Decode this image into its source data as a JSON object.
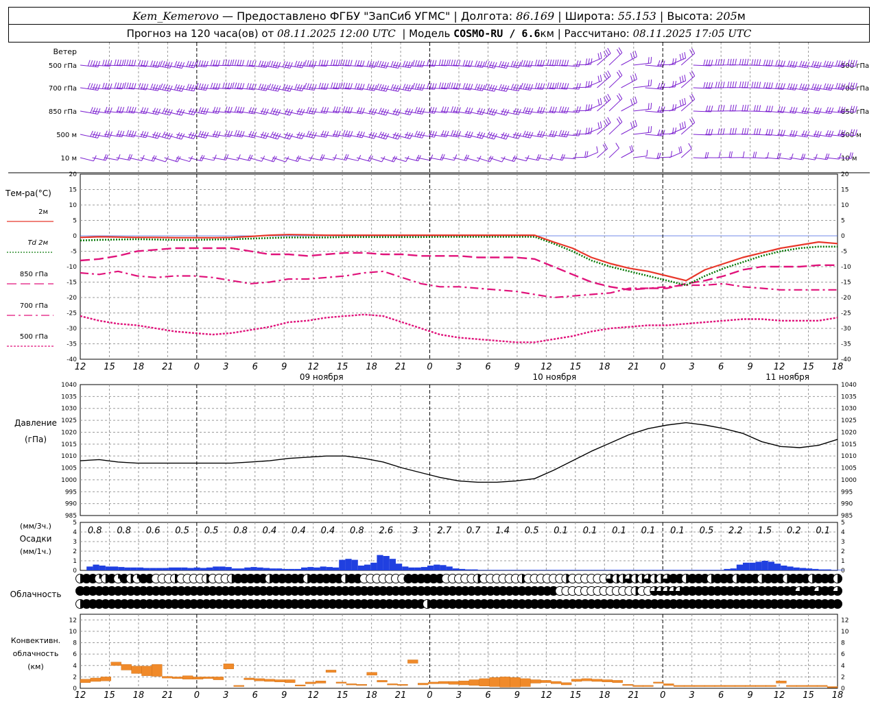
{
  "header": {
    "station": "Kem_Kemerovo",
    "provider": "— Предоставлено ФГБУ \"ЗапСиб УГМС\" |",
    "lon_label": "Долгота:",
    "lon": "86.169",
    "lat_label": "| Широта:",
    "lat": "55.153",
    "alt_label": "| Высота:",
    "alt": "205",
    "alt_unit": "м",
    "forecast_label": "Прогноз на 120 часа(ов) от",
    "forecast_start": "08.11.2025 12:00 UTC",
    "model_label": "| Модель",
    "model": "COSMO-RU / 6.6",
    "model_unit": "км",
    "calc_label": "| Рассчитано:",
    "calc_time": "08.11.2025 17:05 UTC"
  },
  "colors": {
    "t2m": "#e8372a",
    "td2m": "#0a7a0a",
    "t_upper": "#e0127a",
    "wind": "#7b1fd0",
    "precip3h": "#2040e0",
    "precip1h": "#2a8a2a",
    "convective": "#f08a2a",
    "grid": "#999999",
    "zero_line": "#4060e0"
  },
  "time_axis": {
    "hours": [
      "12",
      "15",
      "18",
      "21",
      "0",
      "3",
      "6",
      "9",
      "12",
      "15",
      "18",
      "21",
      "0",
      "3",
      "6",
      "9",
      "12",
      "15",
      "18",
      "21",
      "0",
      "3",
      "6",
      "9",
      "12",
      "15",
      "18"
    ],
    "dates": [
      {
        "label": "09 ноября",
        "index": 8
      },
      {
        "label": "10 ноября",
        "index": 16
      },
      {
        "label": "11 ноября",
        "index": 24
      }
    ],
    "day_boundaries": [
      4,
      12,
      20
    ]
  },
  "wind_panel": {
    "title": "Ветер",
    "levels": [
      "500 гПа",
      "700 гПа",
      "850 гПа",
      "500 м",
      "10  м"
    ]
  },
  "temp_panel": {
    "title": "Тем-ра(°C)",
    "legend": [
      {
        "label": "2м",
        "style": "solid",
        "color": "t2m"
      },
      {
        "label": "Td  2м",
        "style": "dotted",
        "color": "td2m"
      },
      {
        "label": "850 гПа",
        "style": "solid-thin",
        "color": "t_upper"
      },
      {
        "label": "700 гПа",
        "style": "dashdot",
        "color": "t_upper"
      },
      {
        "label": "500 гПа",
        "style": "dash",
        "color": "t_upper"
      }
    ],
    "ticks": [
      "20",
      "15",
      "10",
      "5",
      "0",
      "-5",
      "-10",
      "-15",
      "-20",
      "-25",
      "-30",
      "-35",
      "-40"
    ]
  },
  "pressure_panel": {
    "title": "Давление",
    "unit": "(гПа)",
    "ticks": [
      "1040",
      "1035",
      "1030",
      "1025",
      "1020",
      "1015",
      "1010",
      "1005",
      "1000",
      "995",
      "990",
      "985"
    ]
  },
  "precip_panel": {
    "label_3h": "(мм/3ч.)",
    "title": "Осадки",
    "label_1h": "(мм/1ч.)",
    "ticks": [
      "5",
      "4",
      "3",
      "2",
      "1",
      "0"
    ],
    "sums_3h": [
      "0.8",
      "0.8",
      "0.6",
      "0.5",
      "0.5",
      "0.8",
      "0.4",
      "0.4",
      "0.4",
      "0.8",
      "2.6",
      "3",
      "2.7",
      "0.7",
      "1.4",
      "0.5",
      "0.1",
      "0.1",
      "0.1",
      "0.1",
      "0.1",
      "0.5",
      "2.2",
      "1.5",
      "0.2",
      "0.1"
    ]
  },
  "cloud_panel": {
    "title": "Облачность"
  },
  "conv_panel": {
    "title_lines": [
      "Конвективн.",
      "облачность",
      "(км)"
    ],
    "ticks": [
      "12",
      "10",
      "8",
      "6",
      "4",
      "2",
      "0"
    ]
  },
  "chart_data": [
    {
      "type": "line",
      "title": "Тем-ра(°C)",
      "x_unit": "hours from 08.11.2025 12:00 UTC",
      "x": [
        0,
        3,
        6,
        9,
        12,
        15,
        18,
        21,
        24,
        27,
        30,
        33,
        36,
        39,
        42,
        45,
        48,
        51,
        54,
        57,
        60,
        63,
        66,
        69,
        72,
        75,
        78,
        81,
        84,
        87,
        90,
        93,
        96,
        99,
        102,
        105,
        108,
        111,
        114,
        117,
        120
      ],
      "ylim": [
        -40,
        20
      ],
      "series": [
        {
          "name": "2м",
          "values": [
            -0.5,
            -0.3,
            -0.4,
            -0.5,
            -0.5,
            -0.6,
            -0.6,
            -0.6,
            -0.5,
            -0.2,
            0.2,
            0.4,
            0.3,
            0.2,
            0.2,
            0.2,
            0.2,
            0.2,
            0.2,
            0.2,
            0.2,
            0.2,
            0.2,
            0.2,
            0.2,
            -2,
            -4,
            -7,
            -9,
            -10.5,
            -11.5,
            -13,
            -14.5,
            -11,
            -9,
            -7,
            -5.5,
            -4,
            -3,
            -2,
            -2.5
          ]
        },
        {
          "name": "Td  2м",
          "values": [
            -1.5,
            -1.3,
            -1.2,
            -1.1,
            -1.2,
            -1.3,
            -1.3,
            -1.2,
            -1.1,
            -0.9,
            -0.7,
            -0.5,
            -0.5,
            -0.5,
            -0.4,
            -0.4,
            -0.4,
            -0.4,
            -0.4,
            -0.3,
            -0.3,
            -0.3,
            -0.3,
            -0.3,
            -0.3,
            -2.5,
            -5,
            -8,
            -10,
            -11.5,
            -13,
            -14.5,
            -16,
            -13,
            -10.5,
            -8.5,
            -6.5,
            -5,
            -4,
            -3.5,
            -3.5
          ]
        },
        {
          "name": "850 гПа",
          "values": [
            -8,
            -7.5,
            -6.5,
            -5,
            -4.5,
            -4,
            -4,
            -4,
            -4,
            -5,
            -6,
            -6,
            -6.5,
            -6,
            -5.5,
            -5.5,
            -6,
            -6,
            -6.5,
            -6.5,
            -6.5,
            -7,
            -7,
            -7,
            -7.5,
            -10,
            -12.5,
            -15,
            -16.5,
            -17.5,
            -17,
            -17,
            -15.5,
            -14.5,
            -13,
            -11,
            -10,
            -10,
            -10,
            -9.5,
            -9.5
          ]
        },
        {
          "name": "700 гПа",
          "values": [
            -12,
            -12.5,
            -11.5,
            -13,
            -13.5,
            -13,
            -13,
            -13.5,
            -14.5,
            -15.5,
            -15,
            -14,
            -14,
            -13.5,
            -13,
            -12,
            -11.5,
            -13.5,
            -15.5,
            -16.5,
            -16.5,
            -17,
            -17.5,
            -18,
            -19,
            -20,
            -19.5,
            -19,
            -18.5,
            -17,
            -17,
            -16.5,
            -16,
            -16,
            -15.5,
            -16.5,
            -17,
            -17.5,
            -17.5,
            -17.5,
            -17.5
          ]
        },
        {
          "name": "500 гПа",
          "values": [
            -26,
            -27.5,
            -28.5,
            -29,
            -30,
            -31,
            -31.5,
            -32,
            -31.5,
            -30.5,
            -29.5,
            -28,
            -27.5,
            -26.5,
            -26,
            -25.5,
            -26,
            -28,
            -30,
            -32,
            -33,
            -33.5,
            -34,
            -34.5,
            -34.5,
            -33.5,
            -32.5,
            -31,
            -30,
            -29.5,
            -29,
            -29,
            -28.5,
            -28,
            -27.5,
            -27,
            -27,
            -27.5,
            -27.5,
            -27.5,
            -26.5
          ]
        }
      ]
    },
    {
      "type": "line",
      "title": "Давление",
      "ylabel": "(гПа)",
      "x_unit": "hours from 08.11.2025 12:00 UTC",
      "x": [
        0,
        3,
        6,
        9,
        12,
        15,
        18,
        21,
        24,
        27,
        30,
        33,
        36,
        39,
        42,
        45,
        48,
        51,
        54,
        57,
        60,
        63,
        66,
        69,
        72,
        75,
        78,
        81,
        84,
        87,
        90,
        93,
        96,
        99,
        102,
        105,
        108,
        111,
        114,
        117,
        120
      ],
      "ylim": [
        985,
        1040
      ],
      "series": [
        {
          "name": "",
          "values": [
            1008,
            1008.5,
            1007.5,
            1007,
            1007,
            1007,
            1007,
            1007,
            1007,
            1007.5,
            1008,
            1009,
            1009.5,
            1010,
            1010,
            1009,
            1007.5,
            1005,
            1003,
            1001,
            999.5,
            999,
            999,
            999.5,
            1000.5,
            1004,
            1008,
            1012,
            1015.5,
            1019,
            1021.5,
            1023,
            1024,
            1023,
            1021.5,
            1019.5,
            1016,
            1014,
            1013.5,
            1014.5,
            1017
          ]
        }
      ]
    },
    {
      "type": "bar",
      "title": "Осадки",
      "ylabel": "(мм/1ч.)",
      "x_unit": "hours from 08.11.2025 12:00 UTC",
      "ylim": [
        0,
        5
      ],
      "hourly_mm": [
        0,
        0.4,
        0.6,
        0.5,
        0.4,
        0.4,
        0.35,
        0.3,
        0.3,
        0.3,
        0.25,
        0.25,
        0.25,
        0.25,
        0.3,
        0.3,
        0.3,
        0.25,
        0.3,
        0.25,
        0.3,
        0.4,
        0.4,
        0.35,
        0.2,
        0.2,
        0.3,
        0.35,
        0.3,
        0.25,
        0.2,
        0.2,
        0.15,
        0.15,
        0.15,
        0.3,
        0.35,
        0.3,
        0.4,
        0.35,
        0.3,
        1.1,
        1.2,
        1.1,
        0.5,
        0.6,
        0.8,
        1.6,
        1.5,
        1.2,
        0.7,
        0.4,
        0.3,
        0.3,
        0.35,
        0.5,
        0.6,
        0.55,
        0.4,
        0.2,
        0.15,
        0.1,
        0.1,
        0.05,
        0.05,
        0.05,
        0.05,
        0.05,
        0.05,
        0.05,
        0.05,
        0.05,
        0.05,
        0.05,
        0.05,
        0.05,
        0.05,
        0.05,
        0.05,
        0.05,
        0.05,
        0.05,
        0.05,
        0.05,
        0.05,
        0.05,
        0.05,
        0.05,
        0.05,
        0.05,
        0.05,
        0.05,
        0.05,
        0.05,
        0.05,
        0.05,
        0.05,
        0.05,
        0.05,
        0.05,
        0.05,
        0.05,
        0.15,
        0.2,
        0.6,
        0.8,
        0.8,
        0.9,
        1.0,
        0.9,
        0.7,
        0.5,
        0.4,
        0.3,
        0.25,
        0.2,
        0.15,
        0.1,
        0.1,
        0.05,
        0.05
      ]
    },
    {
      "type": "bar",
      "title": "Конвективн. облачность",
      "ylabel": "(км)",
      "x_unit": "hours from 08.11.2025 12:00 UTC",
      "ylim": [
        0,
        13
      ],
      "layers_km": [
        [
          1,
          1.6
        ],
        [
          1.2,
          1.8
        ],
        [
          1.3,
          2
        ],
        [
          4,
          4.6
        ],
        [
          3.2,
          4.2
        ],
        [
          2.6,
          3.9
        ],
        [
          2.2,
          3.9
        ],
        [
          2.1,
          4.2
        ],
        [
          1.8,
          2.1
        ],
        [
          1.7,
          2
        ],
        [
          1.6,
          2.2
        ],
        [
          1.6,
          2
        ],
        [
          1.7,
          2
        ],
        [
          1.5,
          2
        ],
        [
          3.4,
          4.3
        ],
        [
          0.3,
          0.5
        ],
        [
          1.5,
          1.8
        ],
        [
          1.3,
          1.7
        ],
        [
          1.2,
          1.6
        ],
        [
          1.1,
          1.5
        ],
        [
          1,
          1.5
        ],
        [
          0.4,
          0.6
        ],
        [
          0.8,
          1.1
        ],
        [
          0.9,
          1.3
        ],
        [
          2.8,
          3.2
        ],
        [
          0.9,
          1.1
        ],
        [
          0.6,
          0.8
        ],
        [
          0.5,
          0.7
        ],
        [
          2.3,
          2.8
        ],
        [
          1.1,
          1.4
        ],
        [
          0.6,
          0.8
        ],
        [
          0.5,
          0.7
        ],
        [
          4.4,
          5
        ],
        [
          0.6,
          0.9
        ],
        [
          0.8,
          1.1
        ],
        [
          0.8,
          1.2
        ],
        [
          0.7,
          1.2
        ],
        [
          0.6,
          1.3
        ],
        [
          0.5,
          1.5
        ],
        [
          0.4,
          1.7
        ],
        [
          0.3,
          1.9
        ],
        [
          0.2,
          2
        ],
        [
          0.2,
          1.9
        ],
        [
          0.3,
          1.7
        ],
        [
          0.9,
          1.5
        ],
        [
          1,
          1.4
        ],
        [
          0.8,
          1.2
        ],
        [
          0.6,
          1
        ],
        [
          1.2,
          1.6
        ],
        [
          1.3,
          1.7
        ],
        [
          1.2,
          1.6
        ],
        [
          1.1,
          1.5
        ],
        [
          1,
          1.4
        ],
        [
          0.5,
          0.7
        ],
        [
          0.3,
          0.5
        ],
        [
          0.3,
          0.5
        ],
        [
          0.9,
          1.1
        ],
        [
          0.5,
          0.8
        ],
        [
          0.3,
          0.5
        ],
        [
          0.3,
          0.5
        ],
        [
          0.3,
          0.5
        ],
        [
          0.3,
          0.5
        ],
        [
          0.3,
          0.5
        ],
        [
          0.3,
          0.5
        ],
        [
          0.3,
          0.5
        ],
        [
          0.3,
          0.5
        ],
        [
          0.3,
          0.5
        ],
        [
          0.3,
          0.5
        ],
        [
          0.9,
          1.3
        ],
        [
          0.3,
          0.5
        ],
        [
          0.3,
          0.5
        ],
        [
          0.3,
          0.5
        ],
        [
          0.3,
          0.5
        ],
        [
          0.1,
          0.3
        ]
      ]
    }
  ]
}
